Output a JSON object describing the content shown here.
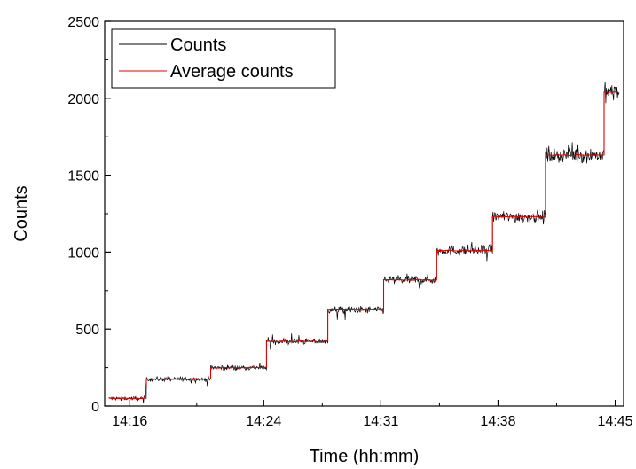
{
  "chart_data": {
    "type": "line",
    "xlabel": "Time (hh:mm)",
    "ylabel": "Counts",
    "x_unit": "time of day (hh:mm)",
    "xlim": [
      "14:14:30",
      "14:45:30"
    ],
    "ylim": [
      0,
      2500
    ],
    "x_ticks": [
      "14:16",
      "14:24",
      "14:31",
      "14:38",
      "14:45"
    ],
    "y_ticks": [
      0,
      500,
      1000,
      1500,
      2000,
      2500
    ],
    "legend_position": "top-left",
    "grid": false,
    "series": [
      {
        "name": "Counts",
        "color": "#000000",
        "style": "noisy raw counts fluctuating around each plateau",
        "steps": [
          {
            "x_start": "14:14:45",
            "x_end": "14:17:00",
            "y": 50
          },
          {
            "x_start": "14:17:00",
            "x_end": "14:20:50",
            "y": 175
          },
          {
            "x_start": "14:20:50",
            "x_end": "14:24:10",
            "y": 250
          },
          {
            "x_start": "14:24:10",
            "x_end": "14:27:50",
            "y": 420
          },
          {
            "x_start": "14:27:50",
            "x_end": "14:31:10",
            "y": 625
          },
          {
            "x_start": "14:31:10",
            "x_end": "14:34:20",
            "y": 820
          },
          {
            "x_start": "14:34:20",
            "x_end": "14:37:40",
            "y": 1010
          },
          {
            "x_start": "14:37:40",
            "x_end": "14:40:50",
            "y": 1230
          },
          {
            "x_start": "14:40:50",
            "x_end": "14:44:20",
            "y": 1630
          },
          {
            "x_start": "14:44:20",
            "x_end": "14:45:15",
            "y": 2040
          }
        ]
      },
      {
        "name": "Average counts",
        "color": "#e00000",
        "style": "smoothed step line following the plateaus"
      }
    ]
  }
}
